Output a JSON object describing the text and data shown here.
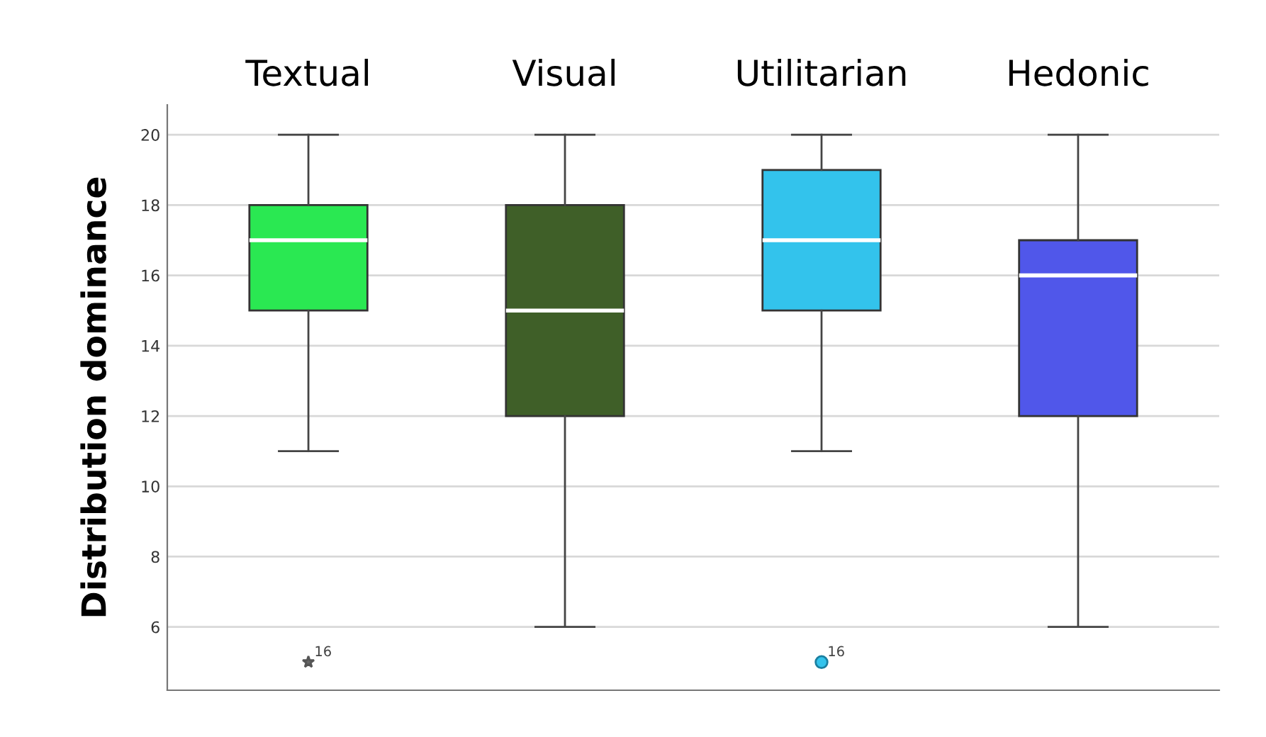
{
  "chart_data": {
    "type": "box",
    "ylabel": "Distribution dominance",
    "categories": [
      "Textual",
      "Visual",
      "Utilitarian",
      "Hedonic"
    ],
    "series": [
      {
        "color": "#2ae852",
        "marker": "star",
        "boxes": [
          {
            "low": 11,
            "q1": 15,
            "median": 17,
            "q3": 18,
            "high": 20,
            "outliers": [
              5
            ]
          },
          null,
          null,
          null
        ]
      },
      {
        "color": "#3f5f28",
        "marker": "circle",
        "boxes": [
          null,
          {
            "low": 6,
            "q1": 12,
            "median": 15,
            "q3": 18,
            "high": 20
          },
          null,
          null
        ]
      },
      {
        "color": "#33c3ec",
        "marker": "circle",
        "boxes": [
          null,
          null,
          {
            "low": 11,
            "q1": 15,
            "median": 17,
            "q3": 19,
            "high": 20,
            "outliers": [
              5
            ]
          },
          null
        ]
      },
      {
        "color": "#5057ea",
        "marker": "circle",
        "boxes": [
          null,
          null,
          null,
          {
            "low": 6,
            "q1": 12,
            "median": 16,
            "q3": 17,
            "high": 20
          }
        ]
      }
    ],
    "ylim": [
      4.2,
      20.85
    ],
    "yticks": [
      6,
      8,
      10,
      12,
      14,
      16,
      18,
      20
    ],
    "grid": "y",
    "annotations": [
      "16",
      "16"
    ]
  }
}
